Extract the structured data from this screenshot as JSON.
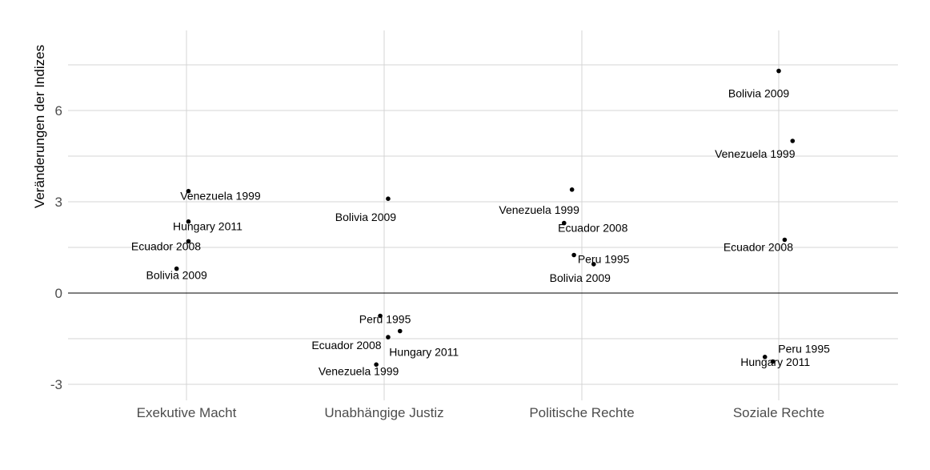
{
  "chart_data": {
    "type": "scatter",
    "title": "",
    "xlabel": "",
    "ylabel": "Veränderungen der Indizes",
    "categories": [
      "Exekutive Macht",
      "Unabhängige Justiz",
      "Politische Rechte",
      "Soziale Rechte"
    ],
    "yticks": [
      "-3",
      "0",
      "3",
      "6"
    ],
    "ylim": [
      -3.5,
      8.5
    ],
    "grid": true,
    "legend": "none",
    "reference_line_y": 0,
    "points": [
      {
        "category": "Exekutive Macht",
        "jitter": 0.01,
        "y": 3.35,
        "label": "Venezuela 1999"
      },
      {
        "category": "Exekutive Macht",
        "jitter": 0.01,
        "y": 2.35,
        "label": "Hungary 2011"
      },
      {
        "category": "Exekutive Macht",
        "jitter": 0.01,
        "y": 1.7,
        "label": "Ecuador 2008"
      },
      {
        "category": "Exekutive Macht",
        "jitter": -0.05,
        "y": 0.8,
        "label": "Bolivia 2009"
      },
      {
        "category": "Unabhängige Justiz",
        "jitter": 0.02,
        "y": 3.1,
        "label": "Bolivia 2009"
      },
      {
        "category": "Unabhängige Justiz",
        "jitter": -0.02,
        "y": -0.75,
        "label": "Peru 1995"
      },
      {
        "category": "Unabhängige Justiz",
        "jitter": 0.08,
        "y": -1.25,
        "label": "Hungary 2011"
      },
      {
        "category": "Unabhängige Justiz",
        "jitter": 0.02,
        "y": -1.45,
        "label": "Ecuador 2008"
      },
      {
        "category": "Unabhängige Justiz",
        "jitter": -0.04,
        "y": -2.35,
        "label": "Venezuela 1999"
      },
      {
        "category": "Politische Rechte",
        "jitter": -0.05,
        "y": 3.4,
        "label": "Venezuela 1999"
      },
      {
        "category": "Politische Rechte",
        "jitter": -0.09,
        "y": 2.3,
        "label": "Ecuador 2008"
      },
      {
        "category": "Politische Rechte",
        "jitter": -0.04,
        "y": 1.25,
        "label": "Peru 1995"
      },
      {
        "category": "Politische Rechte",
        "jitter": 0.06,
        "y": 0.95,
        "label": "Bolivia 2009"
      },
      {
        "category": "Soziale Rechte",
        "jitter": 0.0,
        "y": 7.3,
        "label": "Bolivia 2009"
      },
      {
        "category": "Soziale Rechte",
        "jitter": 0.07,
        "y": 5.0,
        "label": "Venezuela 1999"
      },
      {
        "category": "Soziale Rechte",
        "jitter": 0.03,
        "y": 1.75,
        "label": "Ecuador 2008"
      },
      {
        "category": "Soziale Rechte",
        "jitter": -0.07,
        "y": -2.1,
        "label": "Hungary 2011"
      },
      {
        "category": "Soziale Rechte",
        "jitter": -0.03,
        "y": -2.25,
        "label": "Peru 1995"
      }
    ]
  }
}
